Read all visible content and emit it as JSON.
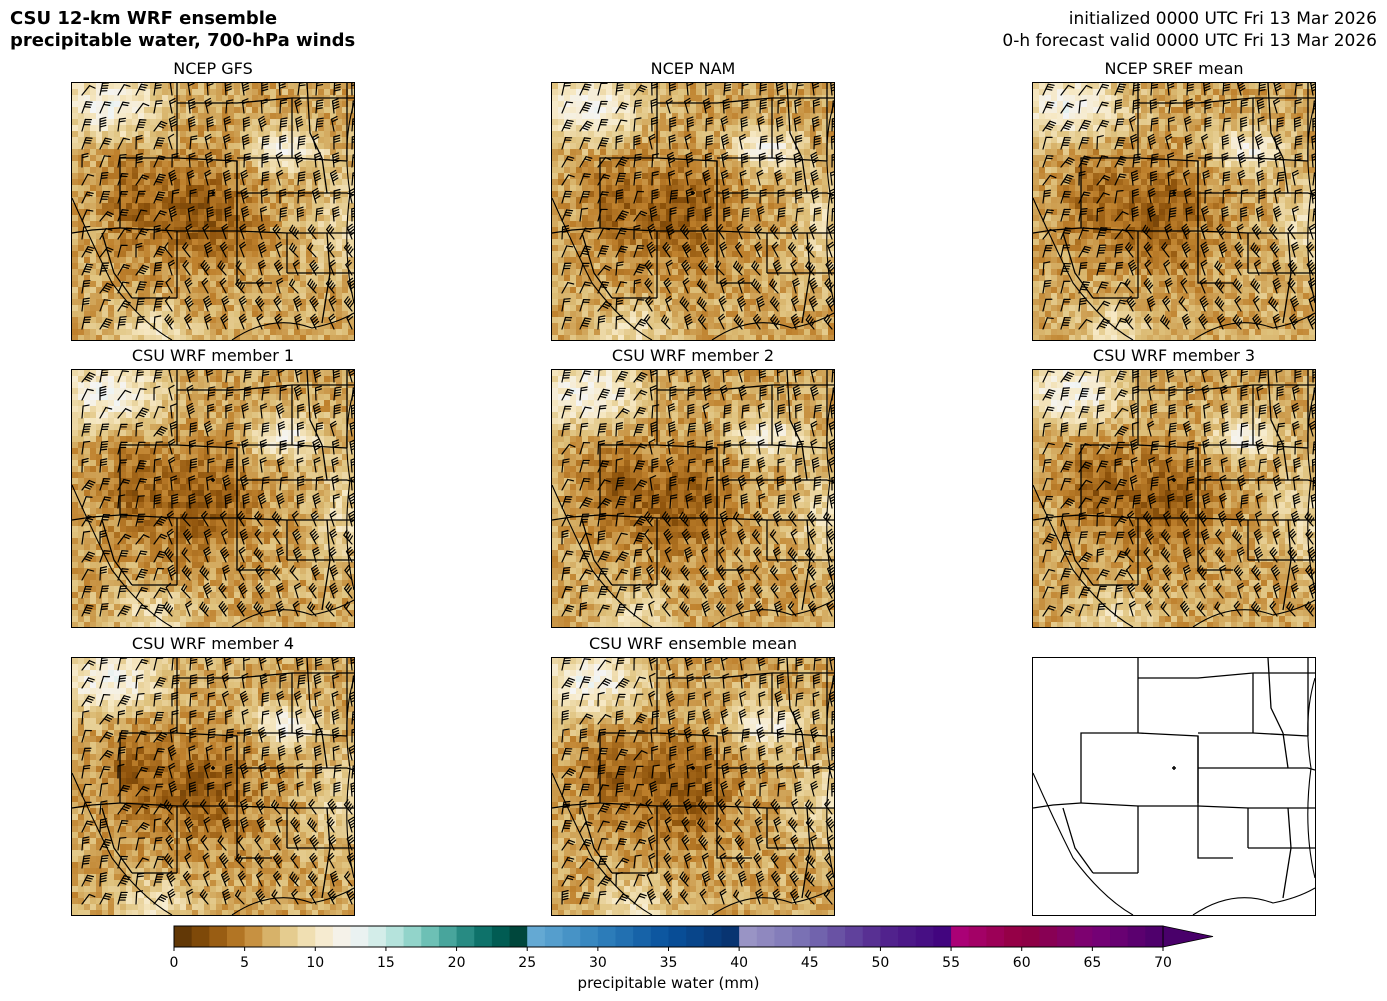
{
  "header": {
    "title_line1": "CSU 12-km WRF ensemble",
    "title_line2": "precipitable water, 700-hPa winds",
    "init_text": "initialized 0000 UTC Fri 13 Mar 2026",
    "valid_text": "0-h forecast valid 0000 UTC Fri 13 Mar 2026"
  },
  "panels": [
    {
      "id": "gfs",
      "title": "NCEP GFS"
    },
    {
      "id": "nam",
      "title": "NCEP NAM"
    },
    {
      "id": "sref",
      "title": "NCEP SREF mean"
    },
    {
      "id": "m1",
      "title": "CSU WRF member 1"
    },
    {
      "id": "m2",
      "title": "CSU WRF member 2"
    },
    {
      "id": "m3",
      "title": "CSU WRF member 3"
    },
    {
      "id": "m4",
      "title": "CSU WRF member 4"
    },
    {
      "id": "mean",
      "title": "CSU WRF ensemble mean"
    },
    {
      "id": "basemap",
      "title": ""
    }
  ],
  "colorbar": {
    "label": "precipitable water (mm)",
    "ticks": [
      0,
      5,
      10,
      15,
      20,
      25,
      30,
      35,
      40,
      45,
      50,
      55,
      60,
      65,
      70
    ],
    "extend": "max",
    "min": 0,
    "max": 70
  },
  "chart_data": {
    "type": "heatmap",
    "title": "precipitable water, 700-hPa winds",
    "colorbar_label": "precipitable water (mm)",
    "vmin": 0,
    "vmax": 70,
    "ticks": [
      0,
      5,
      10,
      15,
      20,
      25,
      30,
      35,
      40,
      45,
      50,
      55,
      60,
      65,
      70
    ],
    "color_segments": [
      {
        "from": 0,
        "to": 12.5,
        "colors": [
          "#543005",
          "#8c510a",
          "#bf812d",
          "#dfc27d",
          "#f6e8c3",
          "#f5f5f5"
        ]
      },
      {
        "from": 12.5,
        "to": 25,
        "colors": [
          "#f5f5f5",
          "#c7eae5",
          "#80cdc1",
          "#35978f",
          "#01665e",
          "#003c30"
        ]
      },
      {
        "from": 25,
        "to": 40,
        "colors": [
          "#6baed6",
          "#3182bd",
          "#08519c",
          "#08306b"
        ]
      },
      {
        "from": 40,
        "to": 55,
        "colors": [
          "#9e9ac8",
          "#756bb1",
          "#54278f",
          "#3f007d"
        ]
      },
      {
        "from": 55,
        "to": 70,
        "colors": [
          "#ae017e",
          "#91003f",
          "#7a0177",
          "#49006a"
        ]
      }
    ],
    "panels": [
      "NCEP GFS",
      "NCEP NAM",
      "NCEP SREF mean",
      "CSU WRF member 1",
      "CSU WRF member 2",
      "CSU WRF member 3",
      "CSU WRF member 4",
      "CSU WRF ensemble mean"
    ]
  }
}
